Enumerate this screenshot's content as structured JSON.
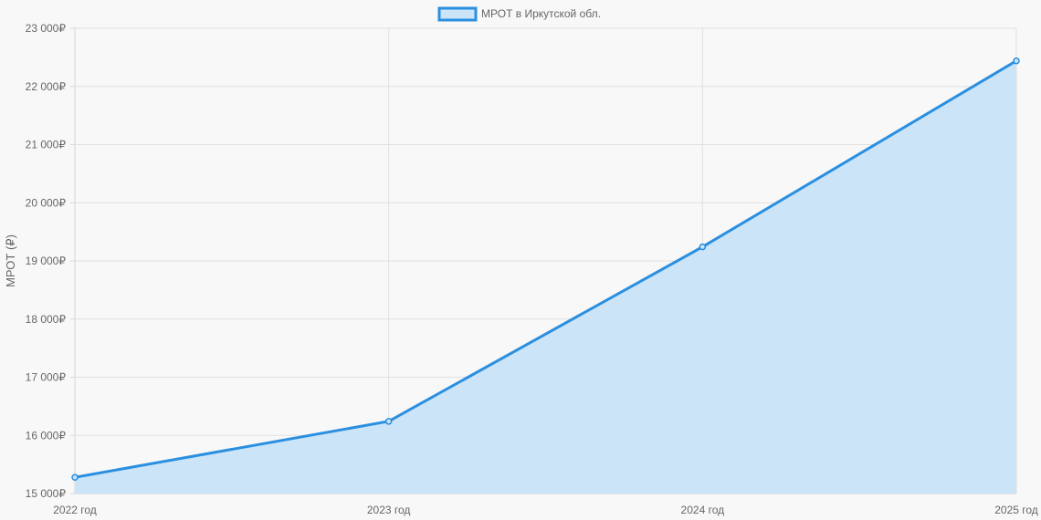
{
  "chart_data": {
    "type": "area",
    "categories": [
      "2022 год",
      "2023 год",
      "2024 год",
      "2025 год"
    ],
    "series": [
      {
        "name": "МРОТ в Иркутской обл.",
        "values": [
          15279,
          16242,
          19242,
          22440
        ],
        "color": "#2b8fe0",
        "fill": "#cbe4f7"
      }
    ],
    "ylabel": "МРОТ (₽)",
    "ylim": [
      15000,
      23000
    ],
    "ystep": 1000,
    "ytick_labels": [
      "15 000₽",
      "16 000₽",
      "17 000₽",
      "18 000₽",
      "19 000₽",
      "20 000₽",
      "21 000₽",
      "22 000₽",
      "23 000₽"
    ],
    "grid": true,
    "legend_position": "top-center"
  }
}
